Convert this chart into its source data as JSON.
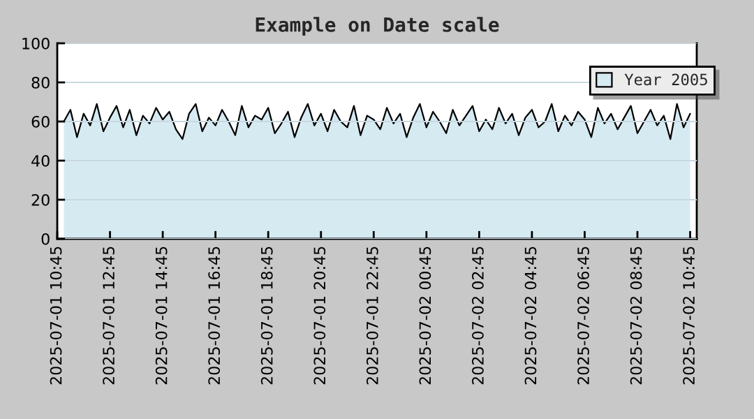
{
  "chart_data": {
    "type": "area",
    "title": "Example on Date scale",
    "x": [
      "2025-07-01T11:00",
      "2025-07-01T11:15",
      "2025-07-01T11:30",
      "2025-07-01T11:45",
      "2025-07-01T12:00",
      "2025-07-01T12:15",
      "2025-07-01T12:30",
      "2025-07-01T12:45",
      "2025-07-01T13:00",
      "2025-07-01T13:15",
      "2025-07-01T13:30",
      "2025-07-01T13:45",
      "2025-07-01T14:00",
      "2025-07-01T14:15",
      "2025-07-01T14:30",
      "2025-07-01T14:45",
      "2025-07-01T15:00",
      "2025-07-01T15:15",
      "2025-07-01T15:30",
      "2025-07-01T15:45",
      "2025-07-01T16:00",
      "2025-07-01T16:15",
      "2025-07-01T16:30",
      "2025-07-01T16:45",
      "2025-07-01T17:00",
      "2025-07-01T17:15",
      "2025-07-01T17:30",
      "2025-07-01T17:45",
      "2025-07-01T18:00",
      "2025-07-01T18:15",
      "2025-07-01T18:30",
      "2025-07-01T18:45",
      "2025-07-01T19:00",
      "2025-07-01T19:15",
      "2025-07-01T19:30",
      "2025-07-01T19:45",
      "2025-07-01T20:00",
      "2025-07-01T20:15",
      "2025-07-01T20:30",
      "2025-07-01T20:45",
      "2025-07-01T21:00",
      "2025-07-01T21:15",
      "2025-07-01T21:30",
      "2025-07-01T21:45",
      "2025-07-01T22:00",
      "2025-07-01T22:15",
      "2025-07-01T22:30",
      "2025-07-01T22:45",
      "2025-07-01T23:00",
      "2025-07-01T23:15",
      "2025-07-01T23:30",
      "2025-07-01T23:45",
      "2025-07-02T00:00",
      "2025-07-02T00:15",
      "2025-07-02T00:30",
      "2025-07-02T00:45",
      "2025-07-02T01:00",
      "2025-07-02T01:15",
      "2025-07-02T01:30",
      "2025-07-02T01:45",
      "2025-07-02T02:00",
      "2025-07-02T02:15",
      "2025-07-02T02:30",
      "2025-07-02T02:45",
      "2025-07-02T03:00",
      "2025-07-02T03:15",
      "2025-07-02T03:30",
      "2025-07-02T03:45",
      "2025-07-02T04:00",
      "2025-07-02T04:15",
      "2025-07-02T04:30",
      "2025-07-02T04:45",
      "2025-07-02T05:00",
      "2025-07-02T05:15",
      "2025-07-02T05:30",
      "2025-07-02T05:45",
      "2025-07-02T06:00",
      "2025-07-02T06:15",
      "2025-07-02T06:30",
      "2025-07-02T06:45",
      "2025-07-02T07:00",
      "2025-07-02T07:15",
      "2025-07-02T07:30",
      "2025-07-02T07:45",
      "2025-07-02T08:00",
      "2025-07-02T08:15",
      "2025-07-02T08:30",
      "2025-07-02T08:45",
      "2025-07-02T09:00",
      "2025-07-02T09:15",
      "2025-07-02T09:30",
      "2025-07-02T09:45",
      "2025-07-02T10:00",
      "2025-07-02T10:15",
      "2025-07-02T10:30",
      "2025-07-02T10:45"
    ],
    "series": [
      {
        "name": "Year 2005",
        "color": "#d6eaf2",
        "values": [
          60,
          66,
          52,
          64,
          58,
          69,
          55,
          62,
          68,
          57,
          66,
          53,
          63,
          59,
          67,
          61,
          65,
          56,
          51,
          64,
          69,
          55,
          62,
          58,
          66,
          60,
          53,
          68,
          57,
          63,
          61,
          67,
          54,
          59,
          65,
          52,
          62,
          69,
          58,
          64,
          55,
          66,
          60,
          57,
          68,
          53,
          63,
          61,
          56,
          67,
          59,
          64,
          52,
          62,
          69,
          57,
          65,
          60,
          54,
          66,
          58,
          63,
          68,
          55,
          61,
          56,
          67,
          59,
          64,
          53,
          62,
          66,
          57,
          60,
          69,
          55,
          63,
          58,
          65,
          61,
          52,
          67,
          59,
          64,
          56,
          62,
          68,
          54,
          60,
          66,
          58,
          63,
          51,
          69,
          57,
          64
        ]
      }
    ],
    "xlim": [
      "2025-07-01T10:45",
      "2025-07-02T11:00"
    ],
    "xticks": [
      {
        "value": "2025-07-01T10:45",
        "label": "2025-07-01 10:45"
      },
      {
        "value": "2025-07-01T12:45",
        "label": "2025-07-01 12:45"
      },
      {
        "value": "2025-07-01T14:45",
        "label": "2025-07-01 14:45"
      },
      {
        "value": "2025-07-01T16:45",
        "label": "2025-07-01 16:45"
      },
      {
        "value": "2025-07-01T18:45",
        "label": "2025-07-01 18:45"
      },
      {
        "value": "2025-07-01T20:45",
        "label": "2025-07-01 20:45"
      },
      {
        "value": "2025-07-01T22:45",
        "label": "2025-07-01 22:45"
      },
      {
        "value": "2025-07-02T00:45",
        "label": "2025-07-02 00:45"
      },
      {
        "value": "2025-07-02T02:45",
        "label": "2025-07-02 02:45"
      },
      {
        "value": "2025-07-02T04:45",
        "label": "2025-07-02 04:45"
      },
      {
        "value": "2025-07-02T06:45",
        "label": "2025-07-02 06:45"
      },
      {
        "value": "2025-07-02T08:45",
        "label": "2025-07-02 08:45"
      },
      {
        "value": "2025-07-02T10:45",
        "label": "2025-07-02 10:45"
      }
    ],
    "ylim": [
      0,
      100
    ],
    "yticks": [
      0,
      20,
      40,
      60,
      80,
      100
    ],
    "grid": "y",
    "legend": "top right"
  }
}
